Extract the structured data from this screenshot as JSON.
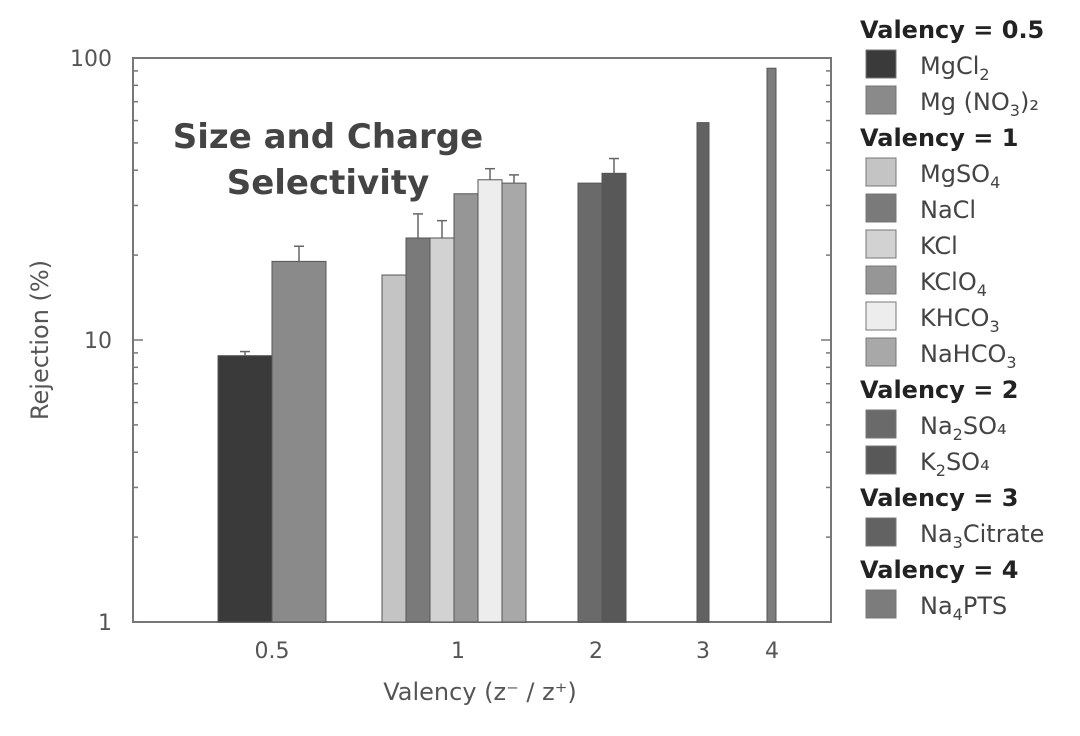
{
  "chart_data": {
    "type": "bar",
    "title": "Size and Charge Selectivity",
    "xlabel": "Valency (z⁻ / z⁺)",
    "ylabel": "Rejection (%)",
    "yscale": "log",
    "ylim": [
      1,
      100
    ],
    "y_ticks": [
      "1",
      "10",
      "100"
    ],
    "x_categories": [
      "0.5",
      "1",
      "2",
      "3",
      "4"
    ],
    "grid": false,
    "legend_position": "right",
    "legend_groups": [
      {
        "heading": "Valency = 0.5",
        "items": [
          {
            "label": "MgCl",
            "sub": "2",
            "tail": ""
          },
          {
            "label": "Mg (NO",
            "sub": "3",
            "tail": ")₂"
          }
        ]
      },
      {
        "heading": "Valency = 1",
        "items": [
          {
            "label": "MgSO",
            "sub": "4",
            "tail": ""
          },
          {
            "label": "NaCl",
            "sub": "",
            "tail": ""
          },
          {
            "label": "KCl",
            "sub": "",
            "tail": ""
          },
          {
            "label": "KClO",
            "sub": "4",
            "tail": ""
          },
          {
            "label": "KHCO",
            "sub": "3",
            "tail": ""
          },
          {
            "label": "NaHCO",
            "sub": "3",
            "tail": ""
          }
        ]
      },
      {
        "heading": "Valency = 2",
        "items": [
          {
            "label": "Na",
            "sub": "2",
            "tail": "SO₄"
          },
          {
            "label": "K",
            "sub": "2",
            "tail": "SO₄"
          }
        ]
      },
      {
        "heading": "Valency = 3",
        "items": [
          {
            "label": "Na",
            "sub": "3",
            "tail": "Citrate"
          }
        ]
      },
      {
        "heading": "Valency = 4",
        "items": [
          {
            "label": "Na",
            "sub": "4",
            "tail": "PTS"
          }
        ]
      }
    ],
    "series": [
      {
        "name": "MgCl₂",
        "group": "0.5",
        "value": 8.8,
        "error": 0.3,
        "color": "#3a3a3a"
      },
      {
        "name": "Mg (NO₃)₂",
        "group": "0.5",
        "value": 19,
        "error": 2.5,
        "color": "#8a8a8a"
      },
      {
        "name": "MgSO₄",
        "group": "1",
        "value": 17,
        "error": 0,
        "color": "#c4c4c4"
      },
      {
        "name": "NaCl",
        "group": "1",
        "value": 23,
        "error": 5,
        "color": "#7a7a7a"
      },
      {
        "name": "KCl",
        "group": "1",
        "value": 23,
        "error": 3.5,
        "color": "#d2d2d2"
      },
      {
        "name": "KClO₄",
        "group": "1",
        "value": 33,
        "error": 0,
        "color": "#969696"
      },
      {
        "name": "KHCO₃",
        "group": "1",
        "value": 37,
        "error": 3.5,
        "color": "#ededed"
      },
      {
        "name": "NaHCO₃",
        "group": "1",
        "value": 36,
        "error": 2.5,
        "color": "#a8a8a8"
      },
      {
        "name": "Na₂SO₄",
        "group": "2",
        "value": 36,
        "error": 0,
        "color": "#6a6a6a"
      },
      {
        "name": "K₂SO₄",
        "group": "2",
        "value": 39,
        "error": 5,
        "color": "#585858"
      },
      {
        "name": "Na₃Citrate",
        "group": "3",
        "value": 59,
        "error": 0,
        "color": "#626262"
      },
      {
        "name": "Na₄PTS",
        "group": "4",
        "value": 92,
        "error": 0,
        "color": "#7c7c7c"
      }
    ]
  }
}
